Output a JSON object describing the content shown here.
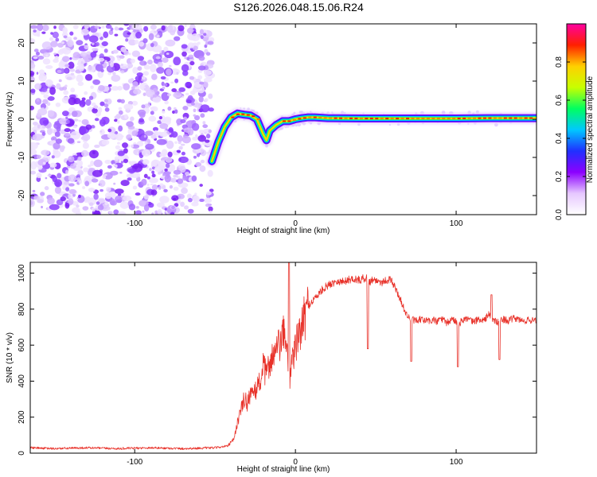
{
  "title": "S126.2026.048.15.06.R24",
  "chart_data": [
    {
      "id": "spectrogram",
      "type": "heatmap",
      "title": "S126.2026.048.15.06.R24",
      "xlabel": "Height of straight line (km)",
      "ylabel": "Frequency (Hz)",
      "xlim": [
        -165,
        150
      ],
      "ylim": [
        -25,
        25
      ],
      "x_ticks": [
        -100,
        0,
        100
      ],
      "y_ticks": [
        -20,
        -10,
        0,
        10,
        20
      ],
      "x_tick_labels": [
        "-100",
        "0",
        "100"
      ],
      "y_tick_labels": [
        "-20",
        "-10",
        "0",
        "10",
        "20"
      ],
      "noise_region_x": [
        -165,
        -52
      ],
      "ridge": {
        "x": [
          -52,
          -48,
          -44,
          -40,
          -36,
          -32,
          -28,
          -24,
          -20,
          -18,
          -16,
          -12,
          -8,
          -4,
          0,
          4,
          8,
          12,
          20,
          40,
          60,
          80,
          100,
          120,
          150
        ],
        "freq_hz": [
          -11,
          -6,
          -2,
          0.5,
          1.5,
          1.2,
          1.0,
          0.0,
          -4.0,
          -5.5,
          -3.0,
          -1.5,
          -0.5,
          -0.5,
          0.0,
          0.3,
          0.5,
          0.5,
          0.3,
          0.2,
          0.2,
          0.2,
          0.2,
          0.3,
          0.3
        ]
      },
      "colorbar": {
        "label": "Normalized spectral amplitude",
        "range": [
          0,
          1
        ],
        "ticks": [
          0.0,
          0.2,
          0.4,
          0.6,
          0.8
        ],
        "tick_labels": [
          "0.0",
          "0.2",
          "0.4",
          "0.6",
          "0.8"
        ],
        "colormap": [
          "#ffffff",
          "#e6c8ff",
          "#8c00ff",
          "#2030ff",
          "#00c8ff",
          "#00ff60",
          "#c8ff00",
          "#ffd000",
          "#ff2000",
          "#ff00a0"
        ]
      }
    },
    {
      "id": "snr",
      "type": "line",
      "xlabel": "Height of straight line (km)",
      "ylabel": "SNR (10 * v/v)",
      "xlim": [
        -165,
        150
      ],
      "ylim": [
        0,
        1060
      ],
      "x_ticks": [
        -100,
        0,
        100
      ],
      "y_ticks": [
        0,
        200,
        400,
        600,
        800,
        1000
      ],
      "x_tick_labels": [
        "-100",
        "0",
        "100"
      ],
      "y_tick_labels": [
        "0",
        "200",
        "400",
        "600",
        "800",
        "1000"
      ],
      "line_color": "#e8322a",
      "series": [
        {
          "name": "SNR",
          "x": [
            -165,
            -150,
            -130,
            -110,
            -90,
            -70,
            -50,
            -42,
            -38,
            -36,
            -34,
            -32,
            -30,
            -28,
            -26,
            -24,
            -22,
            -20,
            -18,
            -16,
            -14,
            -12,
            -10,
            -8,
            -6,
            -4,
            -2,
            0,
            2,
            4,
            6,
            8,
            10,
            12,
            14,
            16,
            18,
            20,
            22,
            24,
            26,
            28,
            30,
            32,
            34,
            36,
            38,
            40,
            42,
            44,
            46,
            48,
            50,
            52,
            54,
            56,
            58,
            60,
            62,
            64,
            66,
            68,
            70,
            72,
            74,
            76,
            78,
            80,
            82,
            84,
            86,
            88,
            90,
            92,
            94,
            96,
            98,
            100,
            102,
            104,
            106,
            108,
            110,
            112,
            114,
            116,
            118,
            120,
            122,
            124,
            126,
            128,
            130,
            132,
            134,
            136,
            138,
            140,
            142,
            144,
            146,
            148,
            150
          ],
          "y": [
            30,
            25,
            30,
            25,
            30,
            25,
            30,
            40,
            80,
            180,
            230,
            300,
            280,
            340,
            310,
            370,
            400,
            480,
            430,
            510,
            540,
            560,
            600,
            640,
            680,
            350,
            540,
            580,
            650,
            700,
            760,
            820,
            840,
            860,
            880,
            900,
            920,
            930,
            940,
            950,
            960,
            950,
            955,
            960,
            965,
            970,
            965,
            960,
            970,
            975,
            950,
            965,
            960,
            955,
            950,
            960,
            965,
            955,
            920,
            880,
            840,
            790,
            760,
            740,
            740,
            730,
            745,
            735,
            740,
            730,
            745,
            725,
            750,
            740,
            720,
            735,
            745,
            730,
            720,
            740,
            750,
            740,
            730,
            735,
            745,
            735,
            740,
            775,
            750,
            735,
            725,
            740,
            745,
            735,
            740,
            750,
            745,
            740,
            730,
            740,
            735,
            745,
            740
          ],
          "dips": [
            {
              "x": 45,
              "y": 580
            },
            {
              "x": 72,
              "y": 510
            },
            {
              "x": 101,
              "y": 480
            },
            {
              "x": 127,
              "y": 520
            }
          ],
          "spikes": [
            {
              "x": -4,
              "y": 1060
            },
            {
              "x": 122,
              "y": 880
            }
          ]
        }
      ]
    }
  ]
}
